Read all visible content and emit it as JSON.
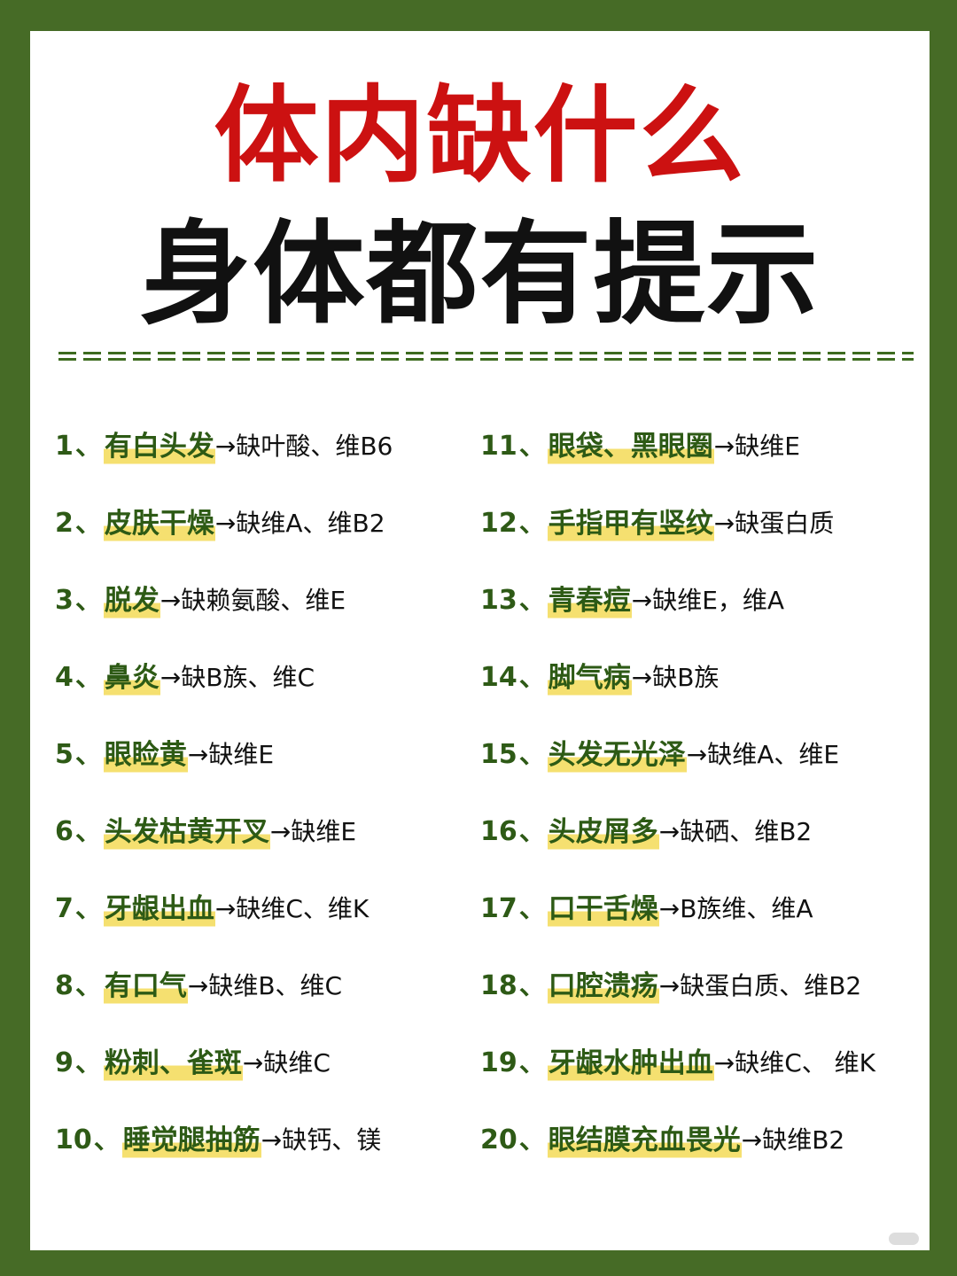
{
  "title_line1": "体内缺什么",
  "title_line2": "身体都有提示",
  "separator": "、",
  "arrow": "→",
  "items": [
    {
      "num": "1",
      "symptom": "有白头发",
      "result": " 缺叶酸、维B6"
    },
    {
      "num": "2",
      "symptom": "皮肤干燥",
      "result": "缺维A、维B2"
    },
    {
      "num": "3",
      "symptom": "脱发",
      "result": "缺赖氨酸、维E"
    },
    {
      "num": "4",
      "symptom": "鼻炎",
      "result": "缺B族、维C"
    },
    {
      "num": "5",
      "symptom": "眼睑黄",
      "result": "缺维E"
    },
    {
      "num": "6",
      "symptom": "头发枯黄开叉",
      "result": "缺维E"
    },
    {
      "num": "7",
      "symptom": "牙龈出血",
      "result": "缺维C、维K"
    },
    {
      "num": "8",
      "symptom": "有口气",
      "result": "缺维B、维C"
    },
    {
      "num": "9",
      "symptom": "粉刺、雀斑",
      "result": "缺维C"
    },
    {
      "num": "10",
      "symptom": "睡觉腿抽筋",
      "result": "缺钙、镁"
    },
    {
      "num": "11",
      "symptom": "眼袋、黑眼圈",
      "result": "缺维E"
    },
    {
      "num": "12",
      "symptom": "手指甲有竖纹",
      "result": "缺蛋白质"
    },
    {
      "num": "13",
      "symptom": "青春痘",
      "result": "缺维E，维A"
    },
    {
      "num": "14",
      "symptom": "脚气病",
      "result": "缺B族"
    },
    {
      "num": "15",
      "symptom": "头发无光泽",
      "result": "缺维A、维E"
    },
    {
      "num": "16",
      "symptom": "头皮屑多",
      "result": " 缺硒、维B2"
    },
    {
      "num": "17",
      "symptom": "口干舌燥",
      "result": " B族维、维A"
    },
    {
      "num": "18",
      "symptom": "口腔溃疡",
      "result": "缺蛋白质、维B2"
    },
    {
      "num": "19",
      "symptom": "牙龈水肿出血",
      "result": "缺维C、 维K"
    },
    {
      "num": "20",
      "symptom": "眼结膜充血畏光",
      "result": "缺维B2"
    }
  ],
  "colors": {
    "frame": "#466b26",
    "title_red": "#cc1111",
    "keyword_green": "#2d5a15",
    "highlight_yellow": "#f5e070"
  }
}
